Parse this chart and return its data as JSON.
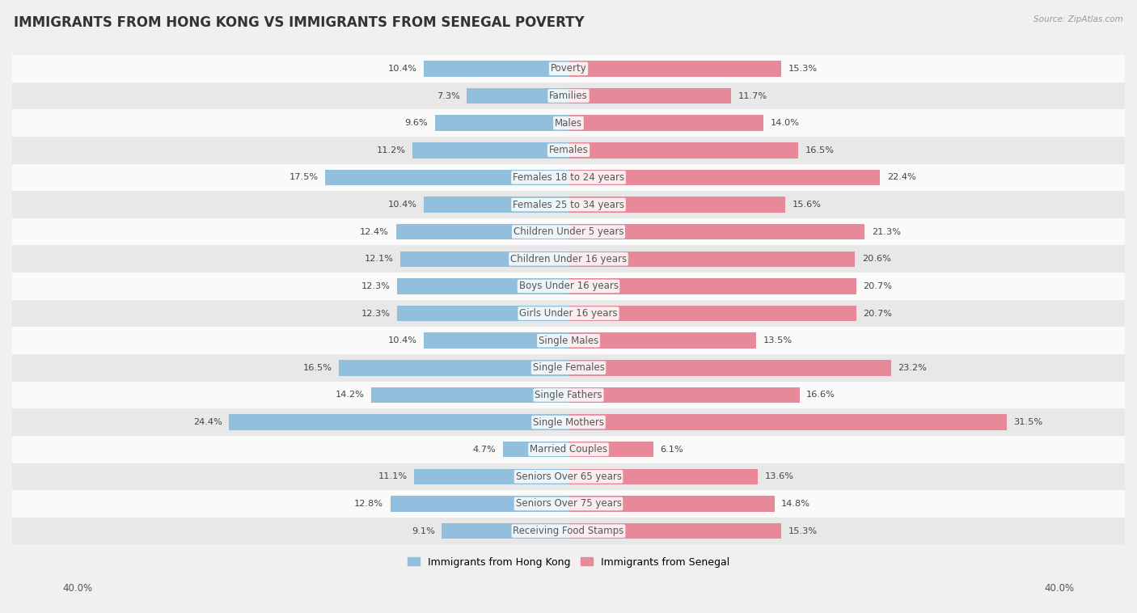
{
  "title": "IMMIGRANTS FROM HONG KONG VS IMMIGRANTS FROM SENEGAL POVERTY",
  "source": "Source: ZipAtlas.com",
  "categories": [
    "Poverty",
    "Families",
    "Males",
    "Females",
    "Females 18 to 24 years",
    "Females 25 to 34 years",
    "Children Under 5 years",
    "Children Under 16 years",
    "Boys Under 16 years",
    "Girls Under 16 years",
    "Single Males",
    "Single Females",
    "Single Fathers",
    "Single Mothers",
    "Married Couples",
    "Seniors Over 65 years",
    "Seniors Over 75 years",
    "Receiving Food Stamps"
  ],
  "hong_kong_values": [
    10.4,
    7.3,
    9.6,
    11.2,
    17.5,
    10.4,
    12.4,
    12.1,
    12.3,
    12.3,
    10.4,
    16.5,
    14.2,
    24.4,
    4.7,
    11.1,
    12.8,
    9.1
  ],
  "senegal_values": [
    15.3,
    11.7,
    14.0,
    16.5,
    22.4,
    15.6,
    21.3,
    20.6,
    20.7,
    20.7,
    13.5,
    23.2,
    16.6,
    31.5,
    6.1,
    13.6,
    14.8,
    15.3
  ],
  "hong_kong_color": "#92c0dc",
  "senegal_color": "#e8899a",
  "hong_kong_label": "Immigrants from Hong Kong",
  "senegal_label": "Immigrants from Senegal",
  "bar_height": 0.58,
  "background_color": "#f0f0f0",
  "row_color_light": "#fafafa",
  "row_color_dark": "#e8e8e8",
  "title_fontsize": 12,
  "label_fontsize": 8.5,
  "value_fontsize": 8.2
}
